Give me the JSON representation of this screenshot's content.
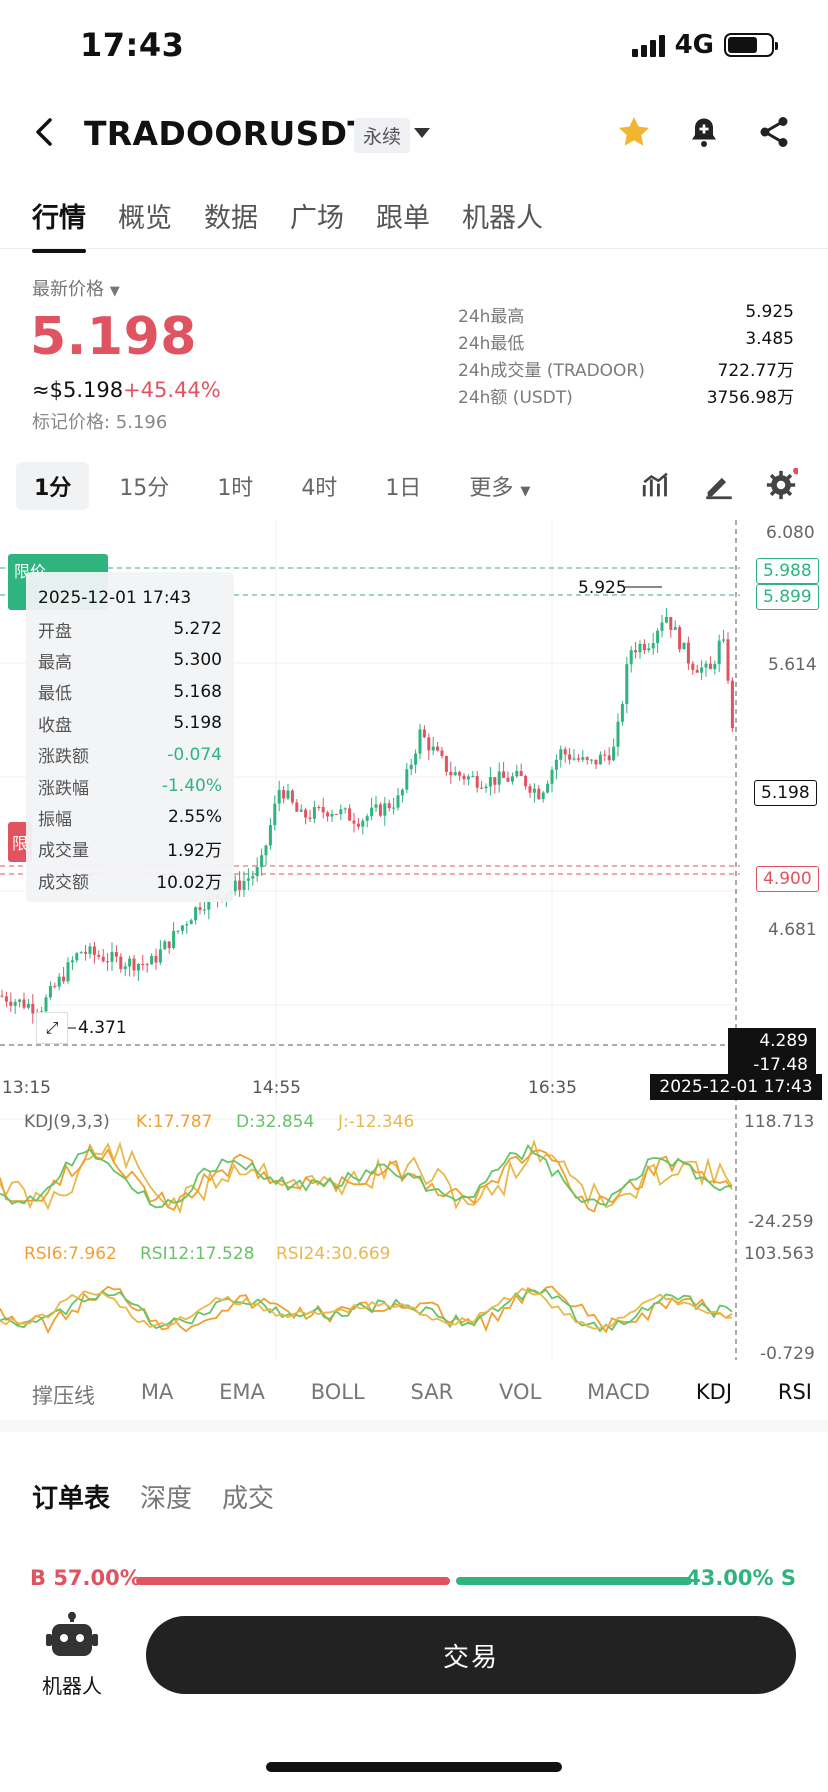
{
  "status": {
    "time": "17:43",
    "network": "4G"
  },
  "header": {
    "title": "TRADOORUSDT",
    "tag": "永续"
  },
  "tabs": [
    "行情",
    "概览",
    "数据",
    "广场",
    "跟单",
    "机器人"
  ],
  "price": {
    "label": "最新价格",
    "last": "5.198",
    "usd": "≈$5.198",
    "change": "+45.44%",
    "mark": "标记价格: 5.196"
  },
  "stats": [
    {
      "k": "24h最高",
      "v": "5.925"
    },
    {
      "k": "24h最低",
      "v": "3.485"
    },
    {
      "k": "24h成交量 (TRADOOR)",
      "v": "722.77万"
    },
    {
      "k": "24h额 (USDT)",
      "v": "3756.98万"
    }
  ],
  "intervals": [
    "1分",
    "15分",
    "1时",
    "4时",
    "1日",
    "更多"
  ],
  "tooltip": {
    "time": "2025-12-01 17:43",
    "rows": [
      {
        "k": "开盘",
        "v": "5.272"
      },
      {
        "k": "最高",
        "v": "5.300"
      },
      {
        "k": "最低",
        "v": "5.168"
      },
      {
        "k": "收盘",
        "v": "5.198"
      },
      {
        "k": "涨跌额",
        "v": "-0.074"
      },
      {
        "k": "涨跌幅",
        "v": "-1.40%"
      },
      {
        "k": "振幅",
        "v": "2.55%"
      },
      {
        "k": "成交量",
        "v": "1.92万"
      },
      {
        "k": "成交额",
        "v": "10.02万"
      }
    ]
  },
  "chart": {
    "y_labels": [
      "6.080",
      "5.614",
      "4.681"
    ],
    "price_tags": {
      "upper1": "5.988",
      "upper2": "5.899",
      "current": "5.198",
      "lower": "4.900"
    },
    "high_label": "5.925",
    "low_label": "4.371",
    "x_labels": [
      "13:15",
      "14:55",
      "16:35"
    ],
    "cross_price": "4.289",
    "cross_pct": "-17.48 %",
    "cross_time": "2025-12-01 17:43",
    "limit_tag": "限价",
    "limit_tag2": "限"
  },
  "kdj": {
    "title": "KDJ(9,3,3)",
    "k": "K:17.787",
    "d": "D:32.854",
    "j": "J:-12.346",
    "ymax": "118.713",
    "ymin": "-24.259",
    "colors": {
      "k": "#f0a030",
      "d": "#66c466",
      "j": "#e8b84a"
    }
  },
  "rsi": {
    "r6": "RSI6:7.962",
    "r12": "RSI12:17.528",
    "r24": "RSI24:30.669",
    "ymax": "103.563",
    "ymin": "-0.729"
  },
  "indicator_tabs": [
    "撑压线",
    "MA",
    "EMA",
    "BOLL",
    "SAR",
    "VOL",
    "MACD",
    "KDJ",
    "RSI"
  ],
  "orderbook_tabs": [
    "订单表",
    "深度",
    "成交"
  ],
  "ratio": {
    "buy": "B 57.00%",
    "sell": "43.00% S",
    "buy_fraction": 0.57
  },
  "bottom": {
    "robot_label": "机器人",
    "trade_button": "交易"
  },
  "colors": {
    "up": "#2fb37f",
    "down": "#e05360"
  }
}
